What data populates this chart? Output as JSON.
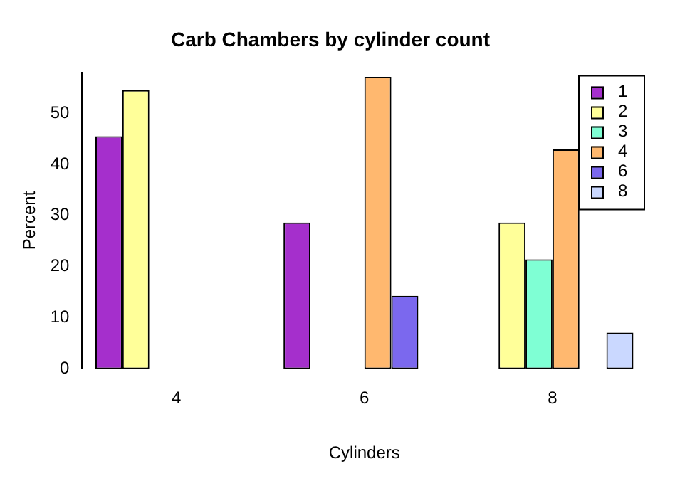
{
  "chart_data": {
    "type": "bar",
    "title": "Carb Chambers by cylinder count",
    "xlabel": "Cylinders",
    "ylabel": "Percent",
    "categories": [
      "4",
      "6",
      "8"
    ],
    "series": [
      {
        "name": "1",
        "color": "#a52fcc",
        "values": [
          45.5,
          28.6,
          0
        ]
      },
      {
        "name": "2",
        "color": "#ffff99",
        "values": [
          54.5,
          0,
          28.6
        ]
      },
      {
        "name": "3",
        "color": "#7fffd4",
        "values": [
          0,
          0,
          21.4
        ]
      },
      {
        "name": "4",
        "color": "#ffb86f",
        "values": [
          0,
          57.1,
          42.9
        ]
      },
      {
        "name": "6",
        "color": "#7b68ee",
        "values": [
          0,
          14.3,
          0
        ]
      },
      {
        "name": "8",
        "color": "#cad8ff",
        "values": [
          0,
          0,
          7.1
        ]
      }
    ],
    "ylim": [
      0,
      58
    ],
    "yticks": [
      0,
      10,
      20,
      30,
      40,
      50
    ],
    "grid": false,
    "legend": "top right"
  }
}
